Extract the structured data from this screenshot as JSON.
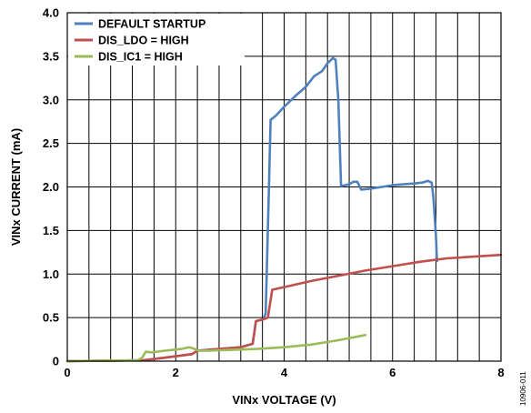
{
  "chart_data": {
    "type": "line",
    "title": "",
    "xlabel": "VINx VOLTAGE (V)",
    "ylabel": "VINx CURRENT (mA)",
    "xlim": [
      0,
      8
    ],
    "ylim": [
      0,
      4.0
    ],
    "xticks": [
      0,
      2,
      4,
      6,
      8
    ],
    "xtick_labels": [
      "0",
      "2",
      "4",
      "6",
      "8"
    ],
    "yticks": [
      0,
      0.5,
      1.0,
      1.5,
      2.0,
      2.5,
      3.0,
      3.5,
      4.0
    ],
    "ytick_labels": [
      "0",
      "0.5",
      "1.0",
      "1.5",
      "2.0",
      "2.5",
      "3.0",
      "3.5",
      "4.0"
    ],
    "x_minor_step": 0.4,
    "grid": true,
    "legend_position": "top-left",
    "figure_id": "10906-011",
    "series": [
      {
        "name": "DEFAULT STARTUP",
        "color": "#4f81bd",
        "points": [
          [
            0,
            0
          ],
          [
            1.4,
            0.01
          ],
          [
            1.8,
            0.04
          ],
          [
            2.3,
            0.08
          ],
          [
            2.4,
            0.12
          ],
          [
            2.8,
            0.14
          ],
          [
            3.2,
            0.16
          ],
          [
            3.42,
            0.2
          ],
          [
            3.48,
            0.46
          ],
          [
            3.62,
            0.48
          ],
          [
            3.66,
            0.55
          ],
          [
            3.72,
            2.0
          ],
          [
            3.75,
            2.77
          ],
          [
            3.85,
            2.82
          ],
          [
            4.0,
            2.92
          ],
          [
            4.2,
            3.04
          ],
          [
            4.4,
            3.15
          ],
          [
            4.55,
            3.27
          ],
          [
            4.7,
            3.33
          ],
          [
            4.8,
            3.42
          ],
          [
            4.9,
            3.48
          ],
          [
            4.95,
            3.46
          ],
          [
            5.0,
            3.0
          ],
          [
            5.05,
            2.01
          ],
          [
            5.2,
            2.03
          ],
          [
            5.28,
            2.06
          ],
          [
            5.35,
            2.06
          ],
          [
            5.42,
            1.97
          ],
          [
            5.6,
            1.98
          ],
          [
            5.8,
            2.0
          ],
          [
            6.0,
            2.02
          ],
          [
            6.2,
            2.03
          ],
          [
            6.4,
            2.04
          ],
          [
            6.55,
            2.05
          ],
          [
            6.65,
            2.07
          ],
          [
            6.72,
            2.05
          ],
          [
            6.75,
            1.9
          ],
          [
            6.8,
            1.45
          ],
          [
            6.82,
            1.15
          ]
        ]
      },
      {
        "name": "DIS_LDO = HIGH",
        "color": "#c0504d",
        "points": [
          [
            0,
            0
          ],
          [
            1.4,
            0.01
          ],
          [
            1.8,
            0.04
          ],
          [
            2.3,
            0.08
          ],
          [
            2.4,
            0.12
          ],
          [
            2.8,
            0.14
          ],
          [
            3.2,
            0.16
          ],
          [
            3.42,
            0.2
          ],
          [
            3.48,
            0.46
          ],
          [
            3.62,
            0.48
          ],
          [
            3.7,
            0.5
          ],
          [
            3.78,
            0.82
          ],
          [
            4.0,
            0.85
          ],
          [
            4.5,
            0.92
          ],
          [
            5.0,
            0.98
          ],
          [
            5.5,
            1.04
          ],
          [
            6.0,
            1.09
          ],
          [
            6.5,
            1.14
          ],
          [
            7.0,
            1.18
          ],
          [
            7.5,
            1.2
          ],
          [
            8.0,
            1.22
          ]
        ]
      },
      {
        "name": "DIS_IC1 = HIGH",
        "color": "#9bbb59",
        "points": [
          [
            0,
            0
          ],
          [
            1.3,
            0.01
          ],
          [
            1.38,
            0.04
          ],
          [
            1.45,
            0.11
          ],
          [
            1.55,
            0.1
          ],
          [
            1.8,
            0.12
          ],
          [
            2.1,
            0.14
          ],
          [
            2.25,
            0.16
          ],
          [
            2.35,
            0.14
          ],
          [
            2.42,
            0.12
          ],
          [
            2.6,
            0.12
          ],
          [
            3.0,
            0.13
          ],
          [
            3.5,
            0.14
          ],
          [
            4.0,
            0.16
          ],
          [
            4.5,
            0.19
          ],
          [
            5.0,
            0.24
          ],
          [
            5.5,
            0.3
          ]
        ]
      }
    ]
  }
}
